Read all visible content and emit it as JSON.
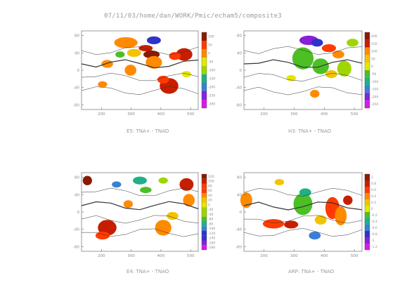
{
  "header": {
    "path": "07/11/03/home/dan/WORK/Pmic/echam5/composite3"
  },
  "palette": [
    "#8a1a00",
    "#c81e00",
    "#ff3b00",
    "#ff8a00",
    "#f2c400",
    "#e4e800",
    "#9fd600",
    "#4cbf24",
    "#1fb08a",
    "#3a7fd6",
    "#3033c8",
    "#8a20d8",
    "#d818ec"
  ],
  "chart_data": [
    {
      "type": "heatmap",
      "title": "",
      "caption": "E5: TNA+ - TNAO",
      "x_ticks": [
        "200",
        "300",
        "400",
        "500"
      ],
      "y_ticks": [
        "80",
        "40",
        "0",
        "-40",
        "-80"
      ],
      "colorbar_ticks": [
        "100",
        "50",
        "0",
        "-50",
        "-100",
        "-150",
        "-200",
        "-250",
        "-300"
      ]
    },
    {
      "type": "heatmap",
      "title": "",
      "caption": "H3: TNA+ - TNAO",
      "x_ticks": [
        "200",
        "300",
        "400",
        "500"
      ],
      "y_ticks": [
        "80",
        "40",
        "0",
        "-40",
        "-80"
      ],
      "colorbar_ticks": [
        "200",
        "150",
        "100",
        "50",
        "0",
        "-50",
        "-100",
        "-150",
        "-200",
        "-250"
      ]
    },
    {
      "type": "heatmap",
      "title": "",
      "caption": "E4: TNA+ - TNAO",
      "x_ticks": [
        "200",
        "300",
        "400",
        "500"
      ],
      "y_ticks": [
        "80",
        "40",
        "0",
        "-40",
        "-80"
      ],
      "colorbar_ticks": [
        "120",
        "100",
        "80",
        "60",
        "40",
        "20",
        "0",
        "-20",
        "-40",
        "-60",
        "-80",
        "-100",
        "-120",
        "-140",
        "-160",
        "-180"
      ]
    },
    {
      "type": "heatmap",
      "title": "",
      "caption": "ARP: TNA+ - TNAO",
      "x_ticks": [
        "200",
        "300",
        "400",
        "500"
      ],
      "y_ticks": [
        "80",
        "40",
        "0",
        "-40",
        "-80"
      ],
      "colorbar_ticks": [
        "1",
        "0.8",
        "0.6",
        "0.4",
        "0.2",
        "0",
        "-0.2",
        "-0.4",
        "-0.6",
        "-0.8",
        "-1",
        "-1.2"
      ]
    }
  ]
}
